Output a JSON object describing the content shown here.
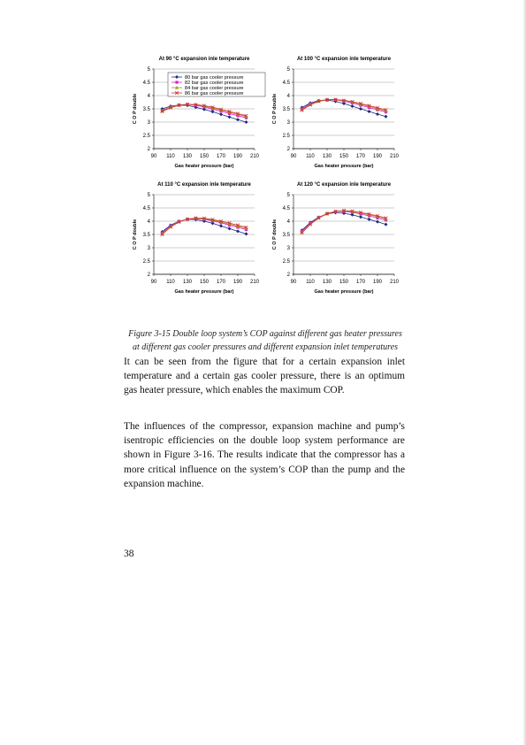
{
  "chart_data": [
    {
      "type": "line",
      "title": "At 90 °C expansion inle temperature",
      "xlabel": "Gas heater pressure (bar)",
      "ylabel": "C O P double",
      "xlim": [
        90,
        210
      ],
      "ylim": [
        2,
        5
      ],
      "xticks": [
        "90",
        "110",
        "130",
        "150",
        "170",
        "190",
        "210"
      ],
      "yticks": [
        "2",
        "2.5",
        "3",
        "3.5",
        "4",
        "4.5",
        "5"
      ],
      "grid": true,
      "legend_position": "top",
      "legend_entries": [
        "80 bar gas cooler pressure",
        "82 bar gas cooler pressure",
        "84 bar gas cooler pressure",
        "86 bar gas cooler pressure"
      ],
      "x": [
        100,
        110,
        120,
        130,
        140,
        150,
        160,
        170,
        180,
        190,
        200
      ],
      "series": [
        {
          "name": "80 bar gas cooler pressure",
          "color": "#1a2a80",
          "marker": "diamond",
          "values": [
            3.5,
            3.6,
            3.64,
            3.63,
            3.56,
            3.48,
            3.39,
            3.29,
            3.19,
            3.09,
            3.0
          ]
        },
        {
          "name": "82 bar gas cooler pressure",
          "color": "#e020c8",
          "marker": "square",
          "values": [
            3.44,
            3.57,
            3.65,
            3.67,
            3.63,
            3.57,
            3.49,
            3.41,
            3.32,
            3.24,
            3.16
          ]
        },
        {
          "name": "84 bar gas cooler pressure",
          "color": "#9a9a20",
          "marker": "triangle",
          "values": [
            3.42,
            3.56,
            3.64,
            3.67,
            3.65,
            3.6,
            3.53,
            3.45,
            3.37,
            3.29,
            3.21
          ]
        },
        {
          "name": "86 bar gas cooler pressure",
          "color": "#cc3030",
          "marker": "x",
          "values": [
            3.4,
            3.54,
            3.63,
            3.67,
            3.66,
            3.62,
            3.56,
            3.48,
            3.4,
            3.32,
            3.24
          ]
        }
      ]
    },
    {
      "type": "line",
      "title": "At 100 °C expansion inle temperature",
      "xlabel": "Gas heater pressure (bar)",
      "ylabel": "C O P double",
      "xlim": [
        90,
        210
      ],
      "ylim": [
        2,
        5
      ],
      "xticks": [
        "90",
        "110",
        "130",
        "150",
        "170",
        "190",
        "210"
      ],
      "yticks": [
        "2",
        "2.5",
        "3",
        "3.5",
        "4",
        "4.5",
        "5"
      ],
      "grid": true,
      "x": [
        100,
        110,
        120,
        130,
        140,
        150,
        160,
        170,
        180,
        190,
        200
      ],
      "series": [
        {
          "name": "80 bar gas cooler pressure",
          "color": "#1a2a80",
          "marker": "diamond",
          "values": [
            3.55,
            3.72,
            3.81,
            3.83,
            3.78,
            3.7,
            3.6,
            3.5,
            3.4,
            3.3,
            3.21
          ]
        },
        {
          "name": "82 bar gas cooler pressure",
          "color": "#e020c8",
          "marker": "square",
          "values": [
            3.5,
            3.69,
            3.8,
            3.85,
            3.84,
            3.79,
            3.72,
            3.63,
            3.55,
            3.46,
            3.38
          ]
        },
        {
          "name": "84 bar gas cooler pressure",
          "color": "#9a9a20",
          "marker": "triangle",
          "values": [
            3.47,
            3.67,
            3.79,
            3.85,
            3.85,
            3.81,
            3.75,
            3.67,
            3.59,
            3.5,
            3.42
          ]
        },
        {
          "name": "86 bar gas cooler pressure",
          "color": "#cc3030",
          "marker": "x",
          "values": [
            3.45,
            3.65,
            3.78,
            3.84,
            3.85,
            3.82,
            3.77,
            3.7,
            3.62,
            3.54,
            3.46
          ]
        }
      ]
    },
    {
      "type": "line",
      "title": "At 110 °C expansion inle temperature",
      "xlabel": "Gas heater pressure (bar)",
      "ylabel": "C O P double",
      "xlim": [
        90,
        210
      ],
      "ylim": [
        2,
        5
      ],
      "xticks": [
        "90",
        "110",
        "130",
        "150",
        "170",
        "190",
        "210"
      ],
      "yticks": [
        "2",
        "2.5",
        "3",
        "3.5",
        "4",
        "4.5",
        "5"
      ],
      "grid": true,
      "x": [
        100,
        110,
        120,
        130,
        140,
        150,
        160,
        170,
        180,
        190,
        200
      ],
      "series": [
        {
          "name": "80 bar gas cooler pressure",
          "color": "#1a2a80",
          "marker": "diamond",
          "values": [
            3.6,
            3.85,
            4.0,
            4.07,
            4.06,
            4.0,
            3.92,
            3.82,
            3.72,
            3.62,
            3.52
          ]
        },
        {
          "name": "82 bar gas cooler pressure",
          "color": "#e020c8",
          "marker": "square",
          "values": [
            3.56,
            3.82,
            3.99,
            4.08,
            4.1,
            4.07,
            4.01,
            3.94,
            3.85,
            3.77,
            3.68
          ]
        },
        {
          "name": "84 bar gas cooler pressure",
          "color": "#9a9a20",
          "marker": "triangle",
          "values": [
            3.53,
            3.8,
            3.98,
            4.08,
            4.11,
            4.09,
            4.04,
            3.97,
            3.89,
            3.81,
            3.73
          ]
        },
        {
          "name": "86 bar gas cooler pressure",
          "color": "#cc3030",
          "marker": "x",
          "values": [
            3.5,
            3.78,
            3.97,
            4.08,
            4.12,
            4.11,
            4.06,
            4.0,
            3.93,
            3.85,
            3.77
          ]
        }
      ]
    },
    {
      "type": "line",
      "title": "At 120 °C expansion inle temperature",
      "xlabel": "Gas heater pressure (bar)",
      "ylabel": "C O P double",
      "xlim": [
        90,
        210
      ],
      "ylim": [
        2,
        5
      ],
      "xticks": [
        "90",
        "110",
        "130",
        "150",
        "170",
        "190",
        "210"
      ],
      "yticks": [
        "2",
        "2.5",
        "3",
        "3.5",
        "4",
        "4.5",
        "5"
      ],
      "grid": true,
      "x": [
        100,
        110,
        120,
        130,
        140,
        150,
        160,
        170,
        180,
        190,
        200
      ],
      "series": [
        {
          "name": "80 bar gas cooler pressure",
          "color": "#1a2a80",
          "marker": "diamond",
          "values": [
            3.66,
            3.95,
            4.15,
            4.28,
            4.32,
            4.3,
            4.24,
            4.16,
            4.07,
            3.98,
            3.88
          ]
        },
        {
          "name": "82 bar gas cooler pressure",
          "color": "#e020c8",
          "marker": "square",
          "values": [
            3.62,
            3.92,
            4.14,
            4.29,
            4.36,
            4.37,
            4.33,
            4.27,
            4.2,
            4.12,
            4.04
          ]
        },
        {
          "name": "84 bar gas cooler pressure",
          "color": "#9a9a20",
          "marker": "triangle",
          "values": [
            3.59,
            3.9,
            4.13,
            4.29,
            4.37,
            4.39,
            4.36,
            4.31,
            4.24,
            4.17,
            4.09
          ]
        },
        {
          "name": "86 bar gas cooler pressure",
          "color": "#cc3030",
          "marker": "x",
          "values": [
            3.56,
            3.88,
            4.12,
            4.28,
            4.37,
            4.4,
            4.38,
            4.33,
            4.27,
            4.2,
            4.12
          ]
        }
      ]
    }
  ],
  "caption": {
    "line1": "Figure 3-15 Double loop system’s COP against different gas heater pressures",
    "line2": "at different gas cooler pressures and different expansion inlet temperatures"
  },
  "paragraphs": [
    "It can be seen from the figure that for a certain expansion inlet temperature and a certain gas cooler pressure, there is an optimum gas heater pressure, which enables the maximum COP.",
    "The influences of the compressor, expansion machine and pump’s isentropic efficiencies on the double loop system performance are shown in Figure 3-16. The results indicate that the compressor has a more critical influence on the system’s COP than the pump and the expansion machine."
  ],
  "page_number": "38"
}
